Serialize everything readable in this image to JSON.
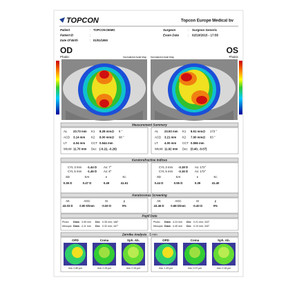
{
  "header": {
    "brand": "TOPCON",
    "company": "Topcon Europe Medical bv"
  },
  "patient": {
    "rows": [
      [
        "Patient",
        ":",
        "TOPCON DEMO"
      ],
      [
        "Patient ID",
        ":",
        ""
      ],
      [
        "Date Of Birth",
        ":",
        "01/01/1950"
      ]
    ],
    "right": [
      [
        "Surgeon",
        ":",
        "Surgeon Generic"
      ],
      [
        "Exam Date",
        ":",
        "02/10/2015 - 17:55"
      ]
    ]
  },
  "eyes": [
    {
      "eye": "OD",
      "lens": "Phakic",
      "map": "Normalized Axial Map"
    },
    {
      "eye": "OS",
      "lens": "Phakic",
      "map": "Normalized Axial Map"
    }
  ],
  "measurement": {
    "title": "Measurement Summary",
    "left": [
      [
        "AL",
        "23.73 mm",
        "K1",
        "8.28 mm@",
        "8 °"
      ],
      [
        "ACD",
        "3.14 mm",
        "K2",
        "8.00 mm@",
        "98 °"
      ],
      [
        "LT",
        "4.04 mm",
        "CCT",
        "0.544 mm",
        ""
      ],
      [
        "WtoW",
        "11.70 mm",
        "Dec",
        "(-0.22, -0.29)",
        ""
      ]
    ],
    "right": [
      [
        "AL",
        "23.93 mm",
        "K1",
        "8.51 mm@",
        "173 °"
      ],
      [
        "ACD",
        "3.21 mm",
        "K2",
        "7.90 mm@",
        "83 °"
      ],
      [
        "LT",
        "4.00 mm",
        "CCT",
        "0.556 mm",
        ""
      ],
      [
        "WtoW",
        "11.92 mm",
        "Dec",
        "(0.40, -0.07)",
        ""
      ]
    ]
  },
  "keratorefractive": {
    "title": "Keratorefractive Indices",
    "left": [
      [
        "CYL 3 mm",
        "-1.44 D",
        "Ax: 7°"
      ],
      [
        "CYL 5 mm",
        "-1.46 D",
        "Ax: 8°"
      ]
    ],
    "right": [
      [
        "CYL 3 mm",
        "-3.18 D",
        "Ax: 172°"
      ],
      [
        "CYL 5 mm",
        "-3.16 D",
        "Ax: 172°"
      ]
    ],
    "heads": [
      "SD",
      "SAI",
      "e",
      "Kc"
    ],
    "left_values": [
      "0.36 D",
      "0.47 D",
      "0.49",
      "41.61"
    ],
    "right_values": [
      "0.44 D",
      "0.55 D",
      "0.39",
      "41.40"
    ]
  },
  "keratoconus": {
    "title": "Keratoconus Screening",
    "heads": [
      "AK",
      "AGC",
      "SI",
      "p"
    ],
    "left_values": [
      "43.03 D",
      "0.90 D/mm",
      "-0.50 D",
      "0%"
    ],
    "right_values": [
      "43.46 D",
      "0.68 D/mm",
      "-0.40 D",
      "0%"
    ]
  },
  "pupil": {
    "title": "Pupil Data",
    "left": [
      [
        "Photo:",
        "Diam",
        "3.95 mm",
        "Dec",
        "0.35 mm; 168°"
      ],
      [
        "Mesopic:",
        "Diam",
        "4.11 mm",
        "Dec",
        "0.32 mm; 167°"
      ]
    ],
    "right": [
      [
        "Photo:",
        "Diam",
        "4.24 mm",
        "Dec",
        "0.21 mm; 343°"
      ],
      [
        "Mesopic:",
        "Diam",
        "4.45 mm",
        "Dec",
        "0.19 mm; 340°"
      ]
    ]
  },
  "zernike": {
    "title": "Zernike Analysis",
    "size": "5 mm",
    "heads": [
      "OPD",
      "Coma",
      "Sph. Ab."
    ],
    "left_rms": [
      "rms: 0.80 µm",
      "rms: 0.15 µm",
      "rms: 0.15 µm"
    ],
    "right_rms": [
      "rms: 1.43 µm",
      "rms: 0.07 µm",
      "rms: 0.18 µm"
    ]
  }
}
